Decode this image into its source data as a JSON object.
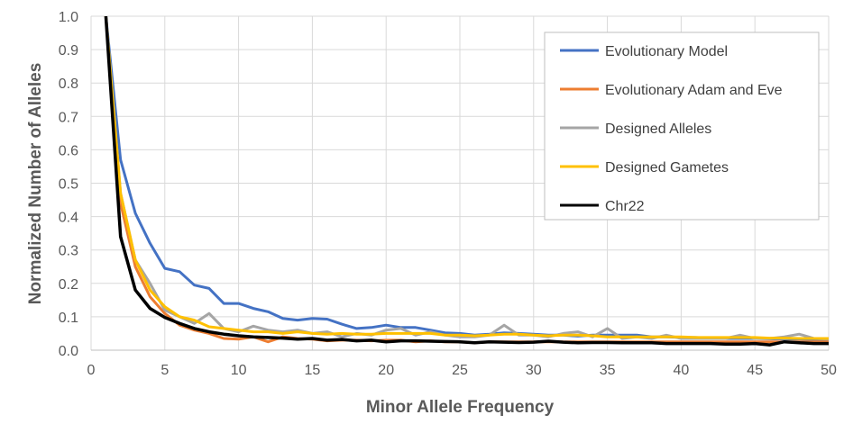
{
  "chart_data": {
    "type": "line",
    "title": "",
    "xlabel": "Minor Allele Frequency",
    "ylabel": "Normalized Number of Alleles",
    "xlim": [
      0,
      50
    ],
    "ylim": [
      0,
      1.0
    ],
    "x_ticks": [
      "0",
      "5",
      "10",
      "15",
      "20",
      "25",
      "30",
      "35",
      "40",
      "45",
      "50"
    ],
    "y_ticks": [
      "0.0",
      "0.1",
      "0.2",
      "0.3",
      "0.4",
      "0.5",
      "0.6",
      "0.7",
      "0.8",
      "0.9",
      "1.0"
    ],
    "grid": true,
    "legend_position": "top-right",
    "x": [
      1,
      2,
      3,
      4,
      5,
      6,
      7,
      8,
      9,
      10,
      11,
      12,
      13,
      14,
      15,
      16,
      17,
      18,
      19,
      20,
      21,
      22,
      23,
      24,
      25,
      26,
      27,
      28,
      29,
      30,
      31,
      32,
      33,
      34,
      35,
      36,
      37,
      38,
      39,
      40,
      41,
      42,
      43,
      44,
      45,
      46,
      47,
      48,
      49,
      50
    ],
    "series": [
      {
        "name": "Evolutionary Model",
        "color": "#4472C4",
        "values": [
          1.0,
          0.57,
          0.41,
          0.32,
          0.245,
          0.235,
          0.195,
          0.185,
          0.14,
          0.14,
          0.125,
          0.115,
          0.095,
          0.09,
          0.095,
          0.093,
          0.078,
          0.065,
          0.068,
          0.075,
          0.068,
          0.068,
          0.06,
          0.052,
          0.05,
          0.045,
          0.048,
          0.052,
          0.05,
          0.048,
          0.045,
          0.045,
          0.042,
          0.045,
          0.045,
          0.045,
          0.045,
          0.04,
          0.04,
          0.038,
          0.038,
          0.036,
          0.035,
          0.035,
          0.035,
          0.034,
          0.034,
          0.033,
          0.032,
          0.032
        ]
      },
      {
        "name": "Evolutionary Adam and Eve",
        "color": "#ED7D31",
        "values": [
          1.0,
          0.44,
          0.25,
          0.16,
          0.11,
          0.075,
          0.06,
          0.05,
          0.035,
          0.033,
          0.04,
          0.025,
          0.04,
          0.035,
          0.033,
          0.028,
          0.03,
          0.03,
          0.028,
          0.03,
          0.03,
          0.025,
          0.028,
          0.025,
          0.025,
          0.022,
          0.025,
          0.025,
          0.025,
          0.025,
          0.025,
          0.025,
          0.025,
          0.025,
          0.025,
          0.025,
          0.025,
          0.025,
          0.025,
          0.025,
          0.025,
          0.025,
          0.025,
          0.025,
          0.025,
          0.025,
          0.025,
          0.025,
          0.025,
          0.025
        ]
      },
      {
        "name": "Designed Alleles",
        "color": "#A5A5A5",
        "values": [
          1.0,
          0.47,
          0.27,
          0.2,
          0.12,
          0.1,
          0.08,
          0.11,
          0.065,
          0.055,
          0.072,
          0.06,
          0.055,
          0.06,
          0.05,
          0.055,
          0.04,
          0.05,
          0.045,
          0.06,
          0.065,
          0.045,
          0.055,
          0.045,
          0.04,
          0.04,
          0.045,
          0.075,
          0.045,
          0.045,
          0.04,
          0.05,
          0.055,
          0.04,
          0.065,
          0.035,
          0.04,
          0.035,
          0.045,
          0.035,
          0.035,
          0.035,
          0.035,
          0.045,
          0.035,
          0.035,
          0.04,
          0.048,
          0.035,
          0.033
        ]
      },
      {
        "name": "Designed Gametes",
        "color": "#FFC000",
        "values": [
          1.0,
          0.47,
          0.27,
          0.18,
          0.13,
          0.1,
          0.09,
          0.07,
          0.065,
          0.06,
          0.055,
          0.055,
          0.05,
          0.055,
          0.05,
          0.048,
          0.05,
          0.048,
          0.048,
          0.05,
          0.05,
          0.05,
          0.05,
          0.045,
          0.045,
          0.043,
          0.045,
          0.048,
          0.048,
          0.045,
          0.043,
          0.045,
          0.045,
          0.043,
          0.04,
          0.04,
          0.04,
          0.04,
          0.04,
          0.04,
          0.038,
          0.038,
          0.038,
          0.038,
          0.038,
          0.036,
          0.036,
          0.035,
          0.035,
          0.035
        ]
      },
      {
        "name": "Chr22",
        "color": "#000000",
        "values": [
          1.0,
          0.34,
          0.18,
          0.125,
          0.098,
          0.08,
          0.065,
          0.055,
          0.048,
          0.043,
          0.04,
          0.038,
          0.036,
          0.033,
          0.035,
          0.03,
          0.032,
          0.028,
          0.03,
          0.025,
          0.028,
          0.028,
          0.027,
          0.026,
          0.025,
          0.022,
          0.025,
          0.024,
          0.023,
          0.024,
          0.027,
          0.024,
          0.022,
          0.023,
          0.023,
          0.022,
          0.022,
          0.022,
          0.02,
          0.02,
          0.02,
          0.02,
          0.018,
          0.018,
          0.02,
          0.016,
          0.025,
          0.022,
          0.02,
          0.02
        ]
      }
    ]
  }
}
